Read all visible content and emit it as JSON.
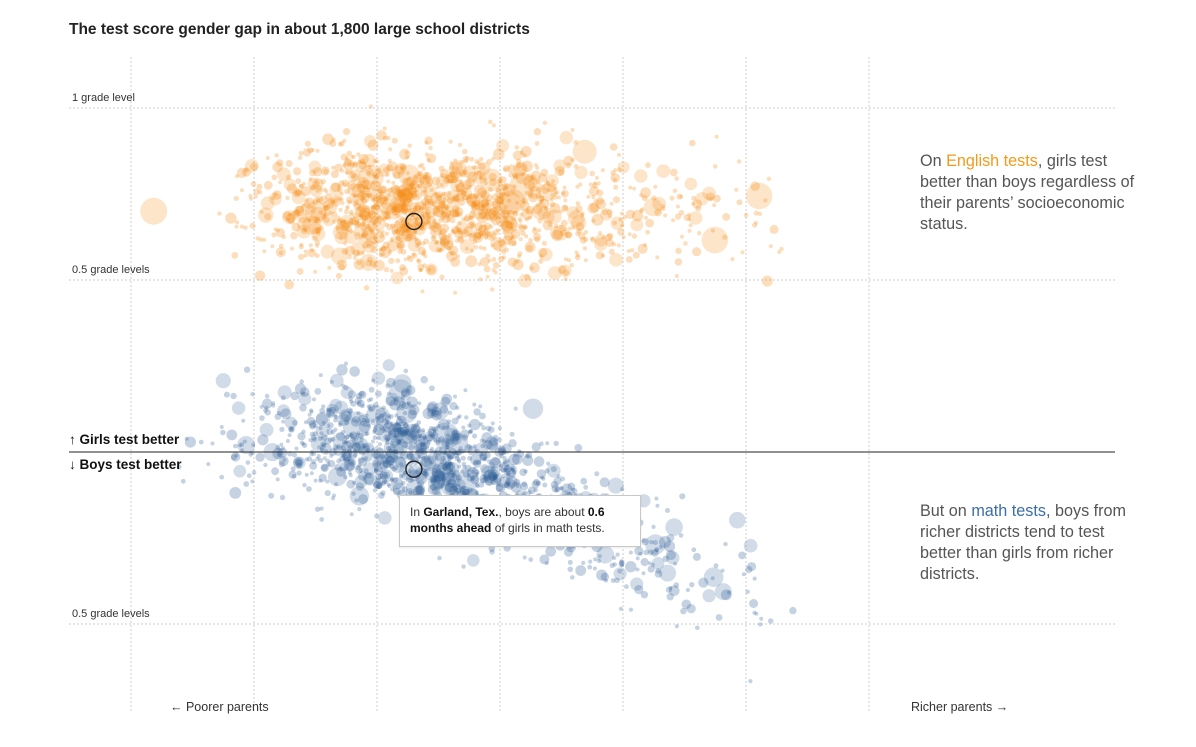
{
  "title": "The test score gender gap in about 1,800 large school districts",
  "y_labels": {
    "top_one": "1 grade level",
    "top_half": "0.5 grade levels",
    "bottom_half": "0.5 grade levels"
  },
  "direction_labels": {
    "girls": "↑ Girls test better",
    "boys": "↓ Boys test better"
  },
  "x_labels": {
    "left": "← Poorer parents",
    "right": "Richer parents →"
  },
  "annotations": {
    "english": {
      "prefix": "On ",
      "highlight": "English tests",
      "suffix": ", girls test better than boys regardless of their parents’ socioeconomic status."
    },
    "math": {
      "prefix": "But on ",
      "highlight": "math tests",
      "suffix": ", boys from richer districts tend to test better than girls from richer districts."
    }
  },
  "tooltip": {
    "t1": "In ",
    "place": "Garland, Tex.",
    "t2": ", boys are about ",
    "amount": "0.6 months ahead",
    "t3": " of girls in math tests."
  },
  "colors": {
    "english": "#f5890f",
    "math": "#2f5f98",
    "baseline": "#222222",
    "gridline": "#cccccc",
    "highlight_ring": "#222222"
  },
  "chart_data": {
    "type": "scatter",
    "title": "The test score gender gap in about 1,800 large school districts",
    "x_axis": {
      "left_label": "← Poorer parents",
      "right_label": "Richer parents →",
      "range": [
        -3.6,
        2.6
      ]
    },
    "y_axis": {
      "unit": "grade levels",
      "range": [
        -1.0,
        1.1
      ],
      "ticks": [
        1.0,
        0.5,
        -0.5
      ],
      "tick_labels": [
        "1 grade level",
        "0.5 grade levels",
        "0.5 grade levels"
      ]
    },
    "grid": true,
    "baseline": 0,
    "series": [
      {
        "name": "English tests",
        "color": "#f5890f",
        "approx_n": 1800,
        "trend": "roughly flat around +0.7 grade levels (girls test better) across socioeconomic status"
      },
      {
        "name": "math tests",
        "color": "#2f5f98",
        "approx_n": 1800,
        "trend": "about +0.05 for poorer districts, declining to about -0.3 (boys test better) for richer districts"
      }
    ],
    "highlighted_district": {
      "name": "Garland, Tex.",
      "ses": -0.7,
      "english_gap": 0.67,
      "math_gap": -0.05
    }
  }
}
